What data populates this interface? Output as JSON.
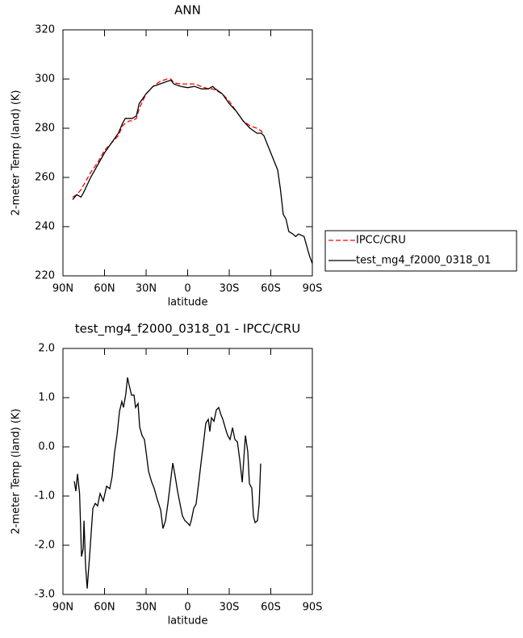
{
  "chart_data": [
    {
      "type": "line",
      "title": "ANN",
      "xlabel": "latitude",
      "ylabel": "2-meter Temp (land) (K)",
      "x": [
        83,
        80,
        77,
        75,
        70,
        65,
        60,
        55,
        50,
        47,
        45,
        42,
        40,
        37,
        35,
        30,
        25,
        20,
        15,
        12,
        10,
        5,
        0,
        -5,
        -10,
        -15,
        -18,
        -20,
        -25,
        -30,
        -35,
        -40,
        -45,
        -50,
        -53,
        -55,
        -65,
        -67,
        -69,
        -71,
        -73,
        -76,
        -78,
        -80,
        -84,
        -86,
        -88,
        -90
      ],
      "series": [
        {
          "name": "IPCC/CRU",
          "color": "#ff0000",
          "dash": "dashed",
          "values": [
            252,
            253,
            255,
            257,
            262,
            266,
            271,
            274,
            277,
            281,
            282,
            283,
            283,
            284,
            288,
            294,
            297,
            299,
            300,
            300,
            298.5,
            298,
            298,
            298,
            297,
            296,
            296,
            295.5,
            294,
            291,
            287,
            283,
            281,
            280,
            279,
            277.5,
            null,
            null,
            null,
            null,
            null,
            null,
            null,
            null,
            null,
            null,
            null,
            null
          ]
        },
        {
          "name": "test_mg4_f2000_0318_01",
          "color": "#000000",
          "dash": "solid",
          "values": [
            251,
            253,
            252,
            254,
            260,
            265,
            270,
            274,
            278,
            282,
            284,
            284,
            284,
            285,
            290,
            294,
            297,
            298,
            299,
            299.5,
            298,
            297,
            296.5,
            297,
            296,
            296,
            297,
            296,
            294,
            290,
            287,
            283,
            280,
            278,
            278,
            277,
            263,
            255,
            245,
            243,
            238,
            237,
            236,
            237,
            236,
            232,
            228,
            225
          ]
        }
      ],
      "xlim": [
        90,
        -90
      ],
      "xticks": [
        {
          "value": 90,
          "label": "90N"
        },
        {
          "value": 60,
          "label": "60N"
        },
        {
          "value": 30,
          "label": "30N"
        },
        0,
        {
          "value": -30,
          "label": "30S"
        },
        {
          "value": -60,
          "label": "60S"
        },
        {
          "value": -90,
          "label": "90S"
        }
      ],
      "ylim": [
        220,
        320
      ],
      "yticks": [
        220,
        240,
        260,
        280,
        300,
        320
      ],
      "legend": "outside right"
    },
    {
      "type": "line",
      "title": "test_mg4_f2000_0318_01 - IPCC/CRU",
      "xlabel": "latitude",
      "ylabel": "2-meter Temp (land) (K)",
      "x": [
        81.8,
        80.7,
        79.5,
        78,
        76.6,
        75.4,
        74.8,
        73.7,
        72.5,
        70.8,
        68.4,
        66.7,
        65,
        63.2,
        60.9,
        58.5,
        56.2,
        54.5,
        52.7,
        51,
        49.2,
        47.5,
        46.3,
        44.6,
        43.4,
        42.2,
        40.5,
        38.7,
        37.6,
        35.8,
        34.6,
        32.9,
        31.2,
        30,
        28.2,
        25.9,
        24.2,
        21.8,
        19.5,
        17.8,
        16,
        14.3,
        11.9,
        10.7,
        9,
        7.3,
        5.5,
        3.8,
        2,
        0.3,
        -1.5,
        -2.6,
        -4.4,
        -6.1,
        -7.9,
        -9.6,
        -11.4,
        -13.1,
        -14.9,
        -16,
        -17.2,
        -19,
        -20.7,
        -22.4,
        -24.2,
        -25.4,
        -27.1,
        -28.9,
        -30.6,
        -32.4,
        -34.1,
        -35.9,
        -37.6,
        -39.4,
        -40.5,
        -41.7,
        -43.4,
        -44.6,
        -46.3,
        -47.5,
        -48.7,
        -50.4,
        -51.6,
        -52.7
      ],
      "series": [
        {
          "color": "#000000",
          "dash": "solid",
          "values": [
            -0.7,
            -0.9,
            -0.55,
            -0.95,
            -2.23,
            -2.07,
            -1.5,
            -2.4,
            -2.88,
            -2.23,
            -1.25,
            -1.15,
            -1.2,
            -0.95,
            -1.1,
            -0.8,
            -0.85,
            -0.6,
            -0.1,
            0.23,
            0.72,
            0.92,
            0.8,
            1.08,
            1.41,
            1.25,
            1.05,
            1.05,
            0.8,
            0.88,
            0.4,
            0.23,
            0.15,
            -0.1,
            -0.5,
            -0.72,
            -0.84,
            -1.08,
            -1.28,
            -1.66,
            -1.5,
            -1.16,
            -0.6,
            -0.33,
            -0.6,
            -0.9,
            -1.16,
            -1.4,
            -1.5,
            -1.54,
            -1.6,
            -1.5,
            -1.25,
            -1.16,
            -0.75,
            -0.34,
            0.07,
            0.48,
            0.56,
            0.31,
            0.59,
            0.52,
            0.75,
            0.8,
            0.64,
            0.56,
            0.39,
            0.23,
            0.15,
            0.39,
            0.15,
            0.1,
            -0.26,
            -0.72,
            -0.26,
            0.23,
            -0.1,
            -0.75,
            -0.84,
            -1.41,
            -1.54,
            -1.5,
            -1.16,
            -0.34
          ]
        }
      ],
      "xlim": [
        90,
        -90
      ],
      "xticks": [
        {
          "value": 90,
          "label": "90N"
        },
        {
          "value": 60,
          "label": "60N"
        },
        {
          "value": 30,
          "label": "30N"
        },
        0,
        {
          "value": -30,
          "label": "30S"
        },
        {
          "value": -60,
          "label": "60S"
        },
        {
          "value": -90,
          "label": "90S"
        }
      ],
      "ylim": [
        -3,
        2
      ],
      "yticks": [
        {
          "value": -3,
          "label": "-3.0"
        },
        {
          "value": -2,
          "label": "-2.0"
        },
        {
          "value": -1,
          "label": "-1.0"
        },
        {
          "value": 0,
          "label": "0.0"
        },
        {
          "value": 1,
          "label": "1.0"
        },
        {
          "value": 2,
          "label": "2.0"
        }
      ]
    }
  ]
}
